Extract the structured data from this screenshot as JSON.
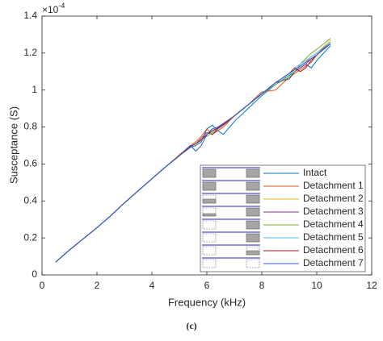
{
  "chart_data": {
    "type": "line",
    "xlabel": "Frequency (kHz)",
    "ylabel": "Susceptance (S)",
    "y_scale_base": "×10",
    "y_scale_exponent": "-4",
    "caption": "(c)",
    "xlim": [
      0,
      12
    ],
    "xticks": [
      0,
      2,
      4,
      6,
      8,
      10,
      12
    ],
    "ylim": [
      0,
      1.4
    ],
    "yticks": [
      0,
      0.2,
      0.4,
      0.6,
      0.8,
      1,
      1.2,
      1.4
    ],
    "legend": "lower right",
    "x": [
      0.5,
      1,
      1.5,
      2,
      2.5,
      3,
      3.5,
      4,
      4.5,
      5,
      5.4,
      5.6,
      5.8,
      6,
      6.2,
      6.4,
      6.6,
      7,
      7.5,
      8,
      8.5,
      9,
      9.2,
      9.4,
      9.6,
      9.8,
      10,
      10.5
    ],
    "series": [
      {
        "name": "Intact",
        "color": "#0072bd",
        "values": [
          0.07,
          0.135,
          0.195,
          0.255,
          0.32,
          0.39,
          0.455,
          0.52,
          0.585,
          0.645,
          0.69,
          0.7,
          0.72,
          0.79,
          0.81,
          0.78,
          0.76,
          0.83,
          0.9,
          0.97,
          1.03,
          1.08,
          1.1,
          1.12,
          1.14,
          1.12,
          1.16,
          1.24
        ]
      },
      {
        "name": "Detachment 1",
        "color": "#d95319",
        "values": [
          0.07,
          0.135,
          0.195,
          0.255,
          0.32,
          0.39,
          0.455,
          0.52,
          0.585,
          0.65,
          0.7,
          0.72,
          0.75,
          0.79,
          0.76,
          0.78,
          0.8,
          0.86,
          0.92,
          0.99,
          1.0,
          1.07,
          1.09,
          1.11,
          1.13,
          1.15,
          1.19,
          1.25
        ]
      },
      {
        "name": "Detachment 2",
        "color": "#edb120",
        "values": [
          0.07,
          0.135,
          0.195,
          0.255,
          0.32,
          0.39,
          0.455,
          0.52,
          0.585,
          0.645,
          0.695,
          0.71,
          0.73,
          0.76,
          0.78,
          0.795,
          0.815,
          0.86,
          0.92,
          0.98,
          1.04,
          1.09,
          1.11,
          1.13,
          1.15,
          1.18,
          1.2,
          1.27
        ]
      },
      {
        "name": "Detachment 3",
        "color": "#7e2f8e",
        "values": [
          0.07,
          0.135,
          0.195,
          0.255,
          0.32,
          0.39,
          0.455,
          0.52,
          0.585,
          0.645,
          0.695,
          0.71,
          0.74,
          0.77,
          0.76,
          0.79,
          0.81,
          0.86,
          0.92,
          0.98,
          1.04,
          1.06,
          1.1,
          1.12,
          1.14,
          1.17,
          1.19,
          1.26
        ]
      },
      {
        "name": "Detachment 4",
        "color": "#77ac30",
        "values": [
          0.07,
          0.135,
          0.195,
          0.255,
          0.32,
          0.39,
          0.455,
          0.52,
          0.585,
          0.645,
          0.695,
          0.71,
          0.73,
          0.75,
          0.77,
          0.795,
          0.815,
          0.86,
          0.92,
          0.98,
          1.03,
          1.07,
          1.1,
          1.14,
          1.17,
          1.2,
          1.22,
          1.28
        ]
      },
      {
        "name": "Detachment 5",
        "color": "#4dbeee",
        "values": [
          0.07,
          0.135,
          0.195,
          0.255,
          0.32,
          0.39,
          0.455,
          0.52,
          0.585,
          0.645,
          0.695,
          0.71,
          0.73,
          0.76,
          0.78,
          0.795,
          0.815,
          0.86,
          0.92,
          0.98,
          1.04,
          1.09,
          1.12,
          1.14,
          1.16,
          1.18,
          1.2,
          1.26
        ]
      },
      {
        "name": "Detachment 6",
        "color": "#a2142f",
        "values": [
          0.07,
          0.135,
          0.195,
          0.255,
          0.32,
          0.39,
          0.455,
          0.52,
          0.585,
          0.645,
          0.695,
          0.71,
          0.73,
          0.76,
          0.78,
          0.795,
          0.815,
          0.86,
          0.92,
          0.98,
          1.04,
          1.09,
          1.12,
          1.1,
          1.12,
          1.16,
          1.19,
          1.25
        ]
      },
      {
        "name": "Detachment 7",
        "color": "#2b5fd9",
        "values": [
          0.07,
          0.135,
          0.195,
          0.255,
          0.32,
          0.39,
          0.455,
          0.52,
          0.585,
          0.645,
          0.7,
          0.67,
          0.7,
          0.76,
          0.79,
          0.8,
          0.82,
          0.86,
          0.92,
          0.98,
          1.04,
          1.09,
          1.11,
          1.13,
          1.15,
          1.17,
          1.19,
          1.25
        ]
      }
    ]
  }
}
